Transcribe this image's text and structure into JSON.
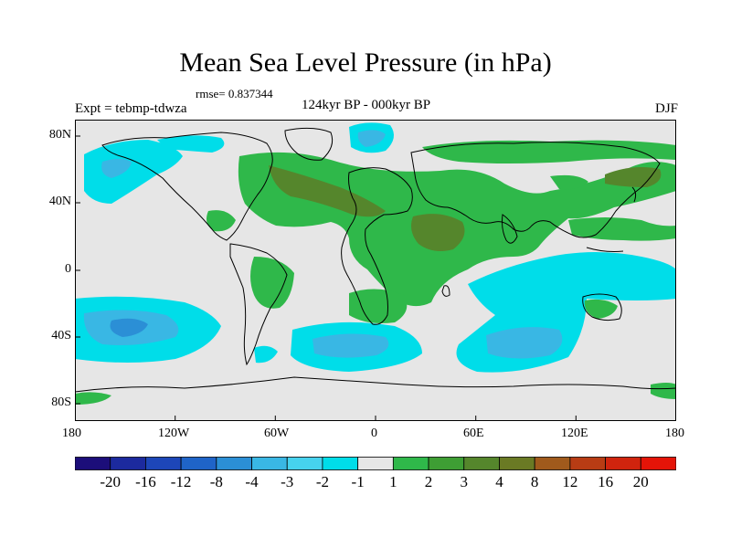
{
  "title": "Mean Sea Level Pressure (in hPa)",
  "rmse": "rmse= 0.837344",
  "experiment": "Expt = tebmp-tdwza",
  "period": "124kyr BP - 000kyr BP",
  "season": "DJF",
  "x_tick_labels": [
    "180",
    "120W",
    "60W",
    "0",
    "60E",
    "120E",
    "180"
  ],
  "y_tick_labels": [
    "80N",
    "40N",
    "0",
    "40S",
    "80S"
  ],
  "colorbar": {
    "colors": [
      "#1c0e7a",
      "#1c2a9e",
      "#1d46b8",
      "#1f64c8",
      "#2b8fd6",
      "#39b7e4",
      "#46d2ee",
      "#00dde9",
      "#e6e6e6",
      "#2fb84a",
      "#3e9e34",
      "#55862c",
      "#6a7a24",
      "#a05a1c",
      "#b83c14",
      "#d0240e",
      "#e41408"
    ],
    "labels": [
      "-20",
      "-16",
      "-12",
      "-8",
      "-4",
      "-3",
      "-2",
      "-1",
      "1",
      "2",
      "3",
      "4",
      "8",
      "12",
      "16",
      "20"
    ]
  },
  "field_colors": {
    "ocean_bg": "#e6e6e6",
    "light_blue": "#00dde9",
    "mid_blue": "#39b7e4",
    "dark_blue": "#2b8fd6",
    "deep_blue": "#1f4ec0",
    "light_green": "#2fb84a",
    "mid_green": "#55862c"
  }
}
